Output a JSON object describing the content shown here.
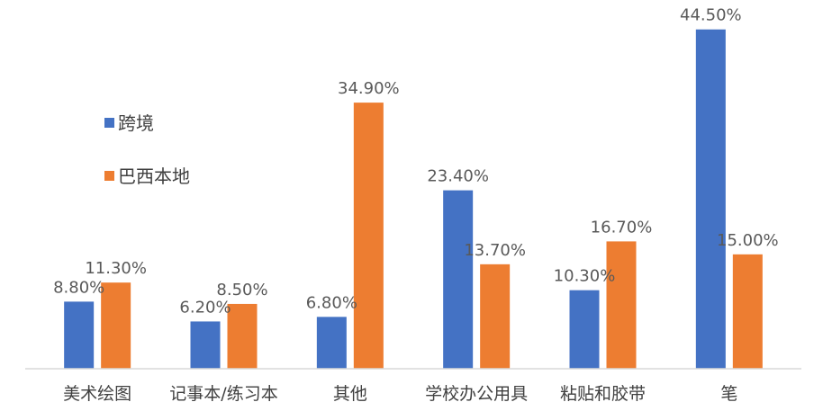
{
  "chart_data": {
    "type": "bar",
    "categories": [
      "美术绘图",
      "记事本/练习本",
      "其他",
      "学校办公用具",
      "粘贴和胶带",
      "笔"
    ],
    "series": [
      {
        "name": "跨境",
        "values": [
          8.8,
          6.2,
          6.8,
          23.4,
          10.3,
          44.5
        ],
        "labels": [
          "8.80%",
          "6.20%",
          "6.80%",
          "23.40%",
          "10.30%",
          "44.50%"
        ],
        "color": "#4472C4"
      },
      {
        "name": "巴西本地",
        "values": [
          11.3,
          8.5,
          34.9,
          13.7,
          16.7,
          15.0
        ],
        "labels": [
          "11.30%",
          "8.50%",
          "34.90%",
          "13.70%",
          "16.70%",
          "15.00%"
        ],
        "color": "#ED7D31"
      }
    ],
    "ylim": [
      0,
      46
    ],
    "grid": false,
    "legend_placement": "left"
  }
}
